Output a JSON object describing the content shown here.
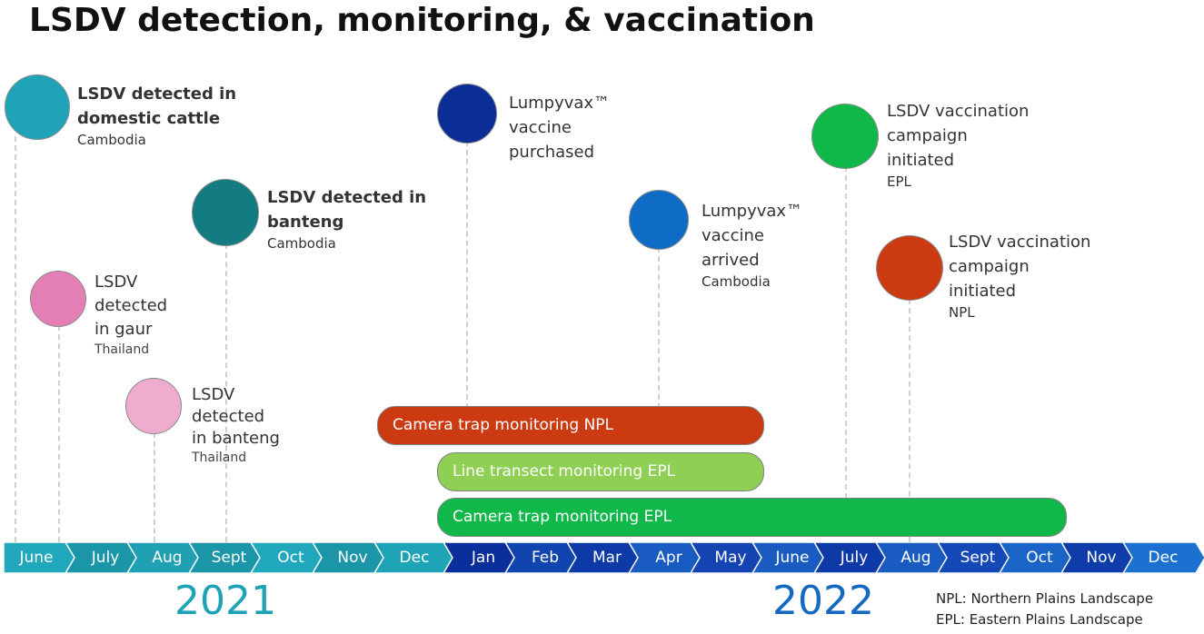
{
  "title": "LSDV detection, monitoring, & vaccination",
  "events": [
    {
      "lines": [
        "LSDV detected in",
        "domestic cattle"
      ],
      "sub": "Cambodia",
      "color": "#1fa3b8"
    },
    {
      "lines": [
        "LSDV",
        "detected",
        "in gaur"
      ],
      "sub": "Thailand",
      "color": "#e47fb6"
    },
    {
      "lines": [
        "LSDV",
        "detected",
        "in banteng"
      ],
      "sub": "Thailand",
      "color": "#efaccf"
    },
    {
      "lines": [
        "LSDV detected in",
        "banteng"
      ],
      "sub": "Cambodia",
      "color": "#137b82"
    },
    {
      "lines": [
        "Lumpyvax™",
        "vaccine",
        "purchased"
      ],
      "sub": "",
      "color": "#0a2d96"
    },
    {
      "lines": [
        "Lumpyvax™",
        "vaccine",
        "arrived"
      ],
      "sub": "Cambodia",
      "color": "#0f6cc6"
    },
    {
      "lines": [
        "LSDV vaccination",
        "campaign",
        "initiated"
      ],
      "sub": "EPL",
      "color": "#10b84a"
    },
    {
      "lines": [
        "LSDV vaccination",
        "campaign",
        "initiated"
      ],
      "sub": "NPL",
      "color": "#cc3a12"
    }
  ],
  "bars": [
    {
      "label": "Camera trap monitoring NPL",
      "color": "#cc3a12"
    },
    {
      "label": "Line transect monitoring EPL",
      "color": "#8fd054"
    },
    {
      "label": "Camera trap monitoring EPL",
      "color": "#10b84a"
    }
  ],
  "timeline": {
    "months": [
      "June",
      "July",
      "Aug",
      "Sept",
      "Oct",
      "Nov",
      "Dec",
      "Jan",
      "Feb",
      "Mar",
      "Apr",
      "May",
      "June",
      "July",
      "Aug",
      "Sept",
      "Oct",
      "Nov",
      "Dec"
    ],
    "years": [
      "2021",
      "2022"
    ],
    "year_colors": [
      "#1ea3b6",
      "#1469c0"
    ]
  },
  "legend": [
    "NPL: Northern Plains Landscape",
    "EPL: Eastern Plains Landscape"
  ]
}
